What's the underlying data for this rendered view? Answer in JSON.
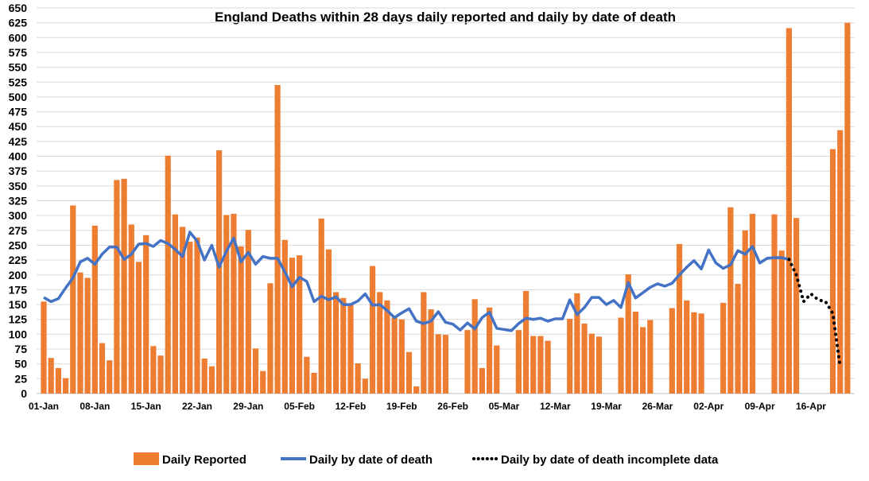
{
  "chart_data": {
    "type": "bar+line",
    "title": "England Deaths within 28 days  daily reported and daily by date of death",
    "xlabel": "",
    "ylabel": "",
    "ylim": [
      0,
      650
    ],
    "ytick_step": 25,
    "grid": true,
    "legend_placement": "bottom",
    "x_start": "01-Jan",
    "x_tick_labels": [
      "01-Jan",
      "08-Jan",
      "15-Jan",
      "22-Jan",
      "29-Jan",
      "05-Feb",
      "12-Feb",
      "19-Feb",
      "26-Feb",
      "05-Mar",
      "12-Mar",
      "19-Mar",
      "26-Mar",
      "02-Apr",
      "09-Apr",
      "16-Apr"
    ],
    "series": [
      {
        "name": "Daily Reported",
        "type": "bar",
        "color": "#ED7D31",
        "values": [
          155,
          60,
          43,
          26,
          317,
          204,
          195,
          283,
          85,
          56,
          360,
          362,
          285,
          222,
          267,
          80,
          64,
          401,
          302,
          281,
          256,
          263,
          59,
          46,
          410,
          301,
          303,
          248,
          276,
          76,
          38,
          186,
          520,
          259,
          229,
          233,
          62,
          35,
          295,
          243,
          171,
          161,
          151,
          51,
          25,
          215,
          171,
          157,
          128,
          125,
          70,
          12,
          171,
          142,
          100,
          99,
          null,
          null,
          107,
          159,
          43,
          145,
          81,
          null,
          null,
          107,
          173,
          97,
          97,
          89,
          null,
          null,
          126,
          169,
          118,
          101,
          96,
          null,
          null,
          128,
          201,
          138,
          112,
          124,
          null,
          null,
          144,
          252,
          157,
          137,
          135,
          null,
          null,
          153,
          314,
          185,
          275,
          303,
          null,
          null,
          302,
          241,
          616,
          296,
          null,
          null,
          null,
          null,
          412,
          444,
          625
        ]
      },
      {
        "name": "Daily by date of death",
        "type": "line",
        "color": "#4472C4",
        "values": [
          162,
          155,
          160,
          178,
          195,
          222,
          228,
          218,
          235,
          247,
          247,
          226,
          235,
          252,
          253,
          248,
          258,
          253,
          243,
          231,
          272,
          257,
          225,
          250,
          213,
          240,
          262,
          222,
          238,
          218,
          231,
          228,
          228,
          205,
          180,
          196,
          189,
          155,
          164,
          158,
          163,
          150,
          150,
          156,
          168,
          149,
          150,
          140,
          128,
          136,
          143,
          122,
          118,
          122,
          138,
          120,
          117,
          107,
          119,
          109,
          128,
          137,
          110,
          108,
          106,
          118,
          127,
          125,
          127,
          122,
          126,
          126,
          158,
          133,
          145,
          162,
          162,
          150,
          157,
          145,
          187,
          161,
          170,
          179,
          185,
          181,
          186,
          200,
          213,
          224,
          210,
          242,
          220,
          211,
          217,
          241,
          235,
          248,
          220,
          228,
          229,
          229,
          226
        ]
      },
      {
        "name": "Daily by date of death incomplete data",
        "type": "dotted-line",
        "color": "#000000",
        "start_index": 102,
        "values": [
          226,
          200,
          155,
          168,
          158,
          155,
          135,
          45
        ]
      }
    ]
  }
}
